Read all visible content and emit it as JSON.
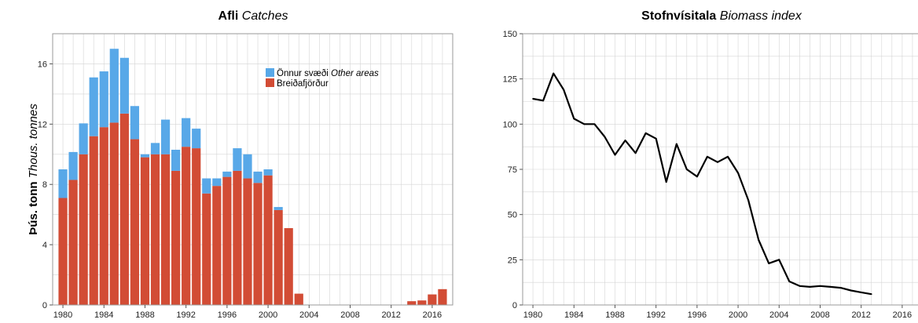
{
  "colors": {
    "other_areas": "#58a8e8",
    "breidafjordur": "#d24c35",
    "line": "#000000",
    "grid": "#d4d4d4",
    "frame": "#9a9a9a"
  },
  "chart_data": [
    {
      "type": "bar",
      "stacked": true,
      "title": "Afli",
      "title_italic": "Catches",
      "xlabel": "",
      "ylabel": "Þús. tonn",
      "ylabel_italic": "Thous. tonnes",
      "xlim": [
        1979,
        2018
      ],
      "ylim": [
        0,
        18
      ],
      "xticks": [
        1980,
        1984,
        1988,
        1992,
        1996,
        2000,
        2004,
        2008,
        2012,
        2016
      ],
      "yticks": [
        0,
        4,
        8,
        12,
        16
      ],
      "grid": true,
      "legend_position": "top-right",
      "years": [
        1980,
        1981,
        1982,
        1983,
        1984,
        1985,
        1986,
        1987,
        1988,
        1989,
        1990,
        1991,
        1992,
        1993,
        1994,
        1995,
        1996,
        1997,
        1998,
        1999,
        2000,
        2001,
        2002,
        2003,
        2014,
        2015,
        2016,
        2017
      ],
      "series": [
        {
          "name": "Breiðafjörður",
          "color_key": "breidafjordur",
          "values": [
            7.1,
            8.3,
            10.0,
            11.2,
            11.8,
            12.1,
            12.7,
            11.0,
            9.8,
            10.0,
            10.0,
            8.9,
            10.5,
            10.4,
            7.4,
            7.9,
            8.5,
            8.9,
            8.4,
            8.1,
            8.6,
            6.3,
            5.1,
            0.75,
            0.25,
            0.3,
            0.7,
            1.05
          ]
        },
        {
          "name": "Önnur svæði",
          "name_italic": "Other areas",
          "color_key": "other_areas",
          "values": [
            1.9,
            1.85,
            2.05,
            3.9,
            3.7,
            4.9,
            3.7,
            2.2,
            0.2,
            0.75,
            2.3,
            1.4,
            1.9,
            1.3,
            1.0,
            0.5,
            0.35,
            1.5,
            1.6,
            0.75,
            0.4,
            0.2,
            0.0,
            0.0,
            0.0,
            0.0,
            0.0,
            0.0
          ]
        }
      ]
    },
    {
      "type": "line",
      "title": "Stofnvísitala",
      "title_italic": "Biomass index",
      "xlabel": "",
      "ylabel": "",
      "xlim": [
        1979,
        2018
      ],
      "ylim": [
        0,
        150
      ],
      "xticks": [
        1980,
        1984,
        1988,
        1992,
        1996,
        2000,
        2004,
        2008,
        2012,
        2016
      ],
      "yticks": [
        0,
        25,
        50,
        75,
        100,
        125,
        150
      ],
      "grid": true,
      "x": [
        1980,
        1981,
        1982,
        1983,
        1984,
        1985,
        1986,
        1987,
        1988,
        1989,
        1990,
        1991,
        1992,
        1993,
        1994,
        1995,
        1996,
        1997,
        1998,
        1999,
        2000,
        2001,
        2002,
        2003,
        2004,
        2005,
        2006,
        2007,
        2008,
        2009,
        2010,
        2011,
        2012,
        2013
      ],
      "y": [
        114,
        113,
        128,
        119,
        103,
        100,
        100,
        93,
        83,
        91,
        84,
        95,
        92,
        68,
        89,
        75,
        71,
        82,
        79,
        82,
        73,
        58,
        36,
        23,
        25,
        13,
        10.5,
        10,
        10.5,
        10,
        9.5,
        8,
        7,
        6
      ]
    }
  ]
}
